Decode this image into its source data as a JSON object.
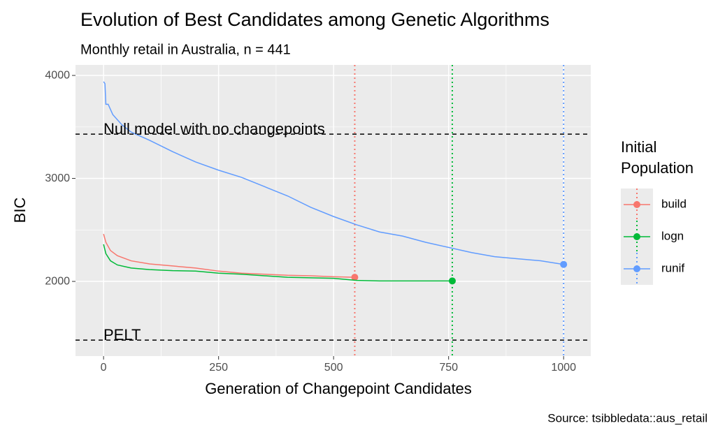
{
  "chart_data": {
    "type": "line",
    "title": "Evolution of Best Candidates among Genetic Algorithms",
    "subtitle": "Monthly retail in Australia, n = 441",
    "x_label": "Generation of Changepoint Candidates",
    "y_label": "BIC",
    "caption": "Source: tsibbledata::aus_retail",
    "legend_title": "Initial Population",
    "legend_position": "right",
    "grid": true,
    "xlim": [
      -61,
      1059
    ],
    "ylim": [
      1275,
      4102
    ],
    "xticks": [
      0,
      250,
      500,
      750,
      1000
    ],
    "yticks": [
      2000,
      3000,
      4000
    ],
    "reference_lines": [
      {
        "label": "Null model with no changepoints",
        "value": 3430
      },
      {
        "label": "PELT",
        "value": 1430
      }
    ],
    "series": [
      {
        "name": "build",
        "color": "#F8766D",
        "last_generation": 546,
        "x": [
          0,
          5,
          15,
          30,
          60,
          100,
          150,
          200,
          250,
          300,
          350,
          400,
          450,
          500,
          546
        ],
        "values": [
          2460,
          2380,
          2300,
          2250,
          2200,
          2170,
          2150,
          2130,
          2100,
          2080,
          2070,
          2060,
          2055,
          2045,
          2040
        ]
      },
      {
        "name": "logn",
        "color": "#00BA38",
        "last_generation": 758,
        "x": [
          0,
          5,
          15,
          30,
          60,
          100,
          150,
          200,
          250,
          300,
          350,
          400,
          450,
          500,
          550,
          600,
          758
        ],
        "values": [
          2360,
          2270,
          2200,
          2160,
          2130,
          2115,
          2105,
          2100,
          2080,
          2070,
          2055,
          2040,
          2035,
          2030,
          2010,
          2005,
          2005
        ]
      },
      {
        "name": "runif",
        "color": "#619CFF",
        "last_generation": 1000,
        "x": [
          0,
          3,
          5,
          10,
          20,
          40,
          60,
          100,
          150,
          200,
          250,
          300,
          350,
          400,
          450,
          500,
          550,
          600,
          650,
          700,
          750,
          800,
          850,
          900,
          950,
          1000
        ],
        "values": [
          3940,
          3920,
          3720,
          3720,
          3620,
          3520,
          3450,
          3370,
          3260,
          3160,
          3080,
          3010,
          2920,
          2830,
          2720,
          2630,
          2550,
          2480,
          2440,
          2380,
          2330,
          2280,
          2240,
          2220,
          2200,
          2165
        ]
      }
    ]
  }
}
